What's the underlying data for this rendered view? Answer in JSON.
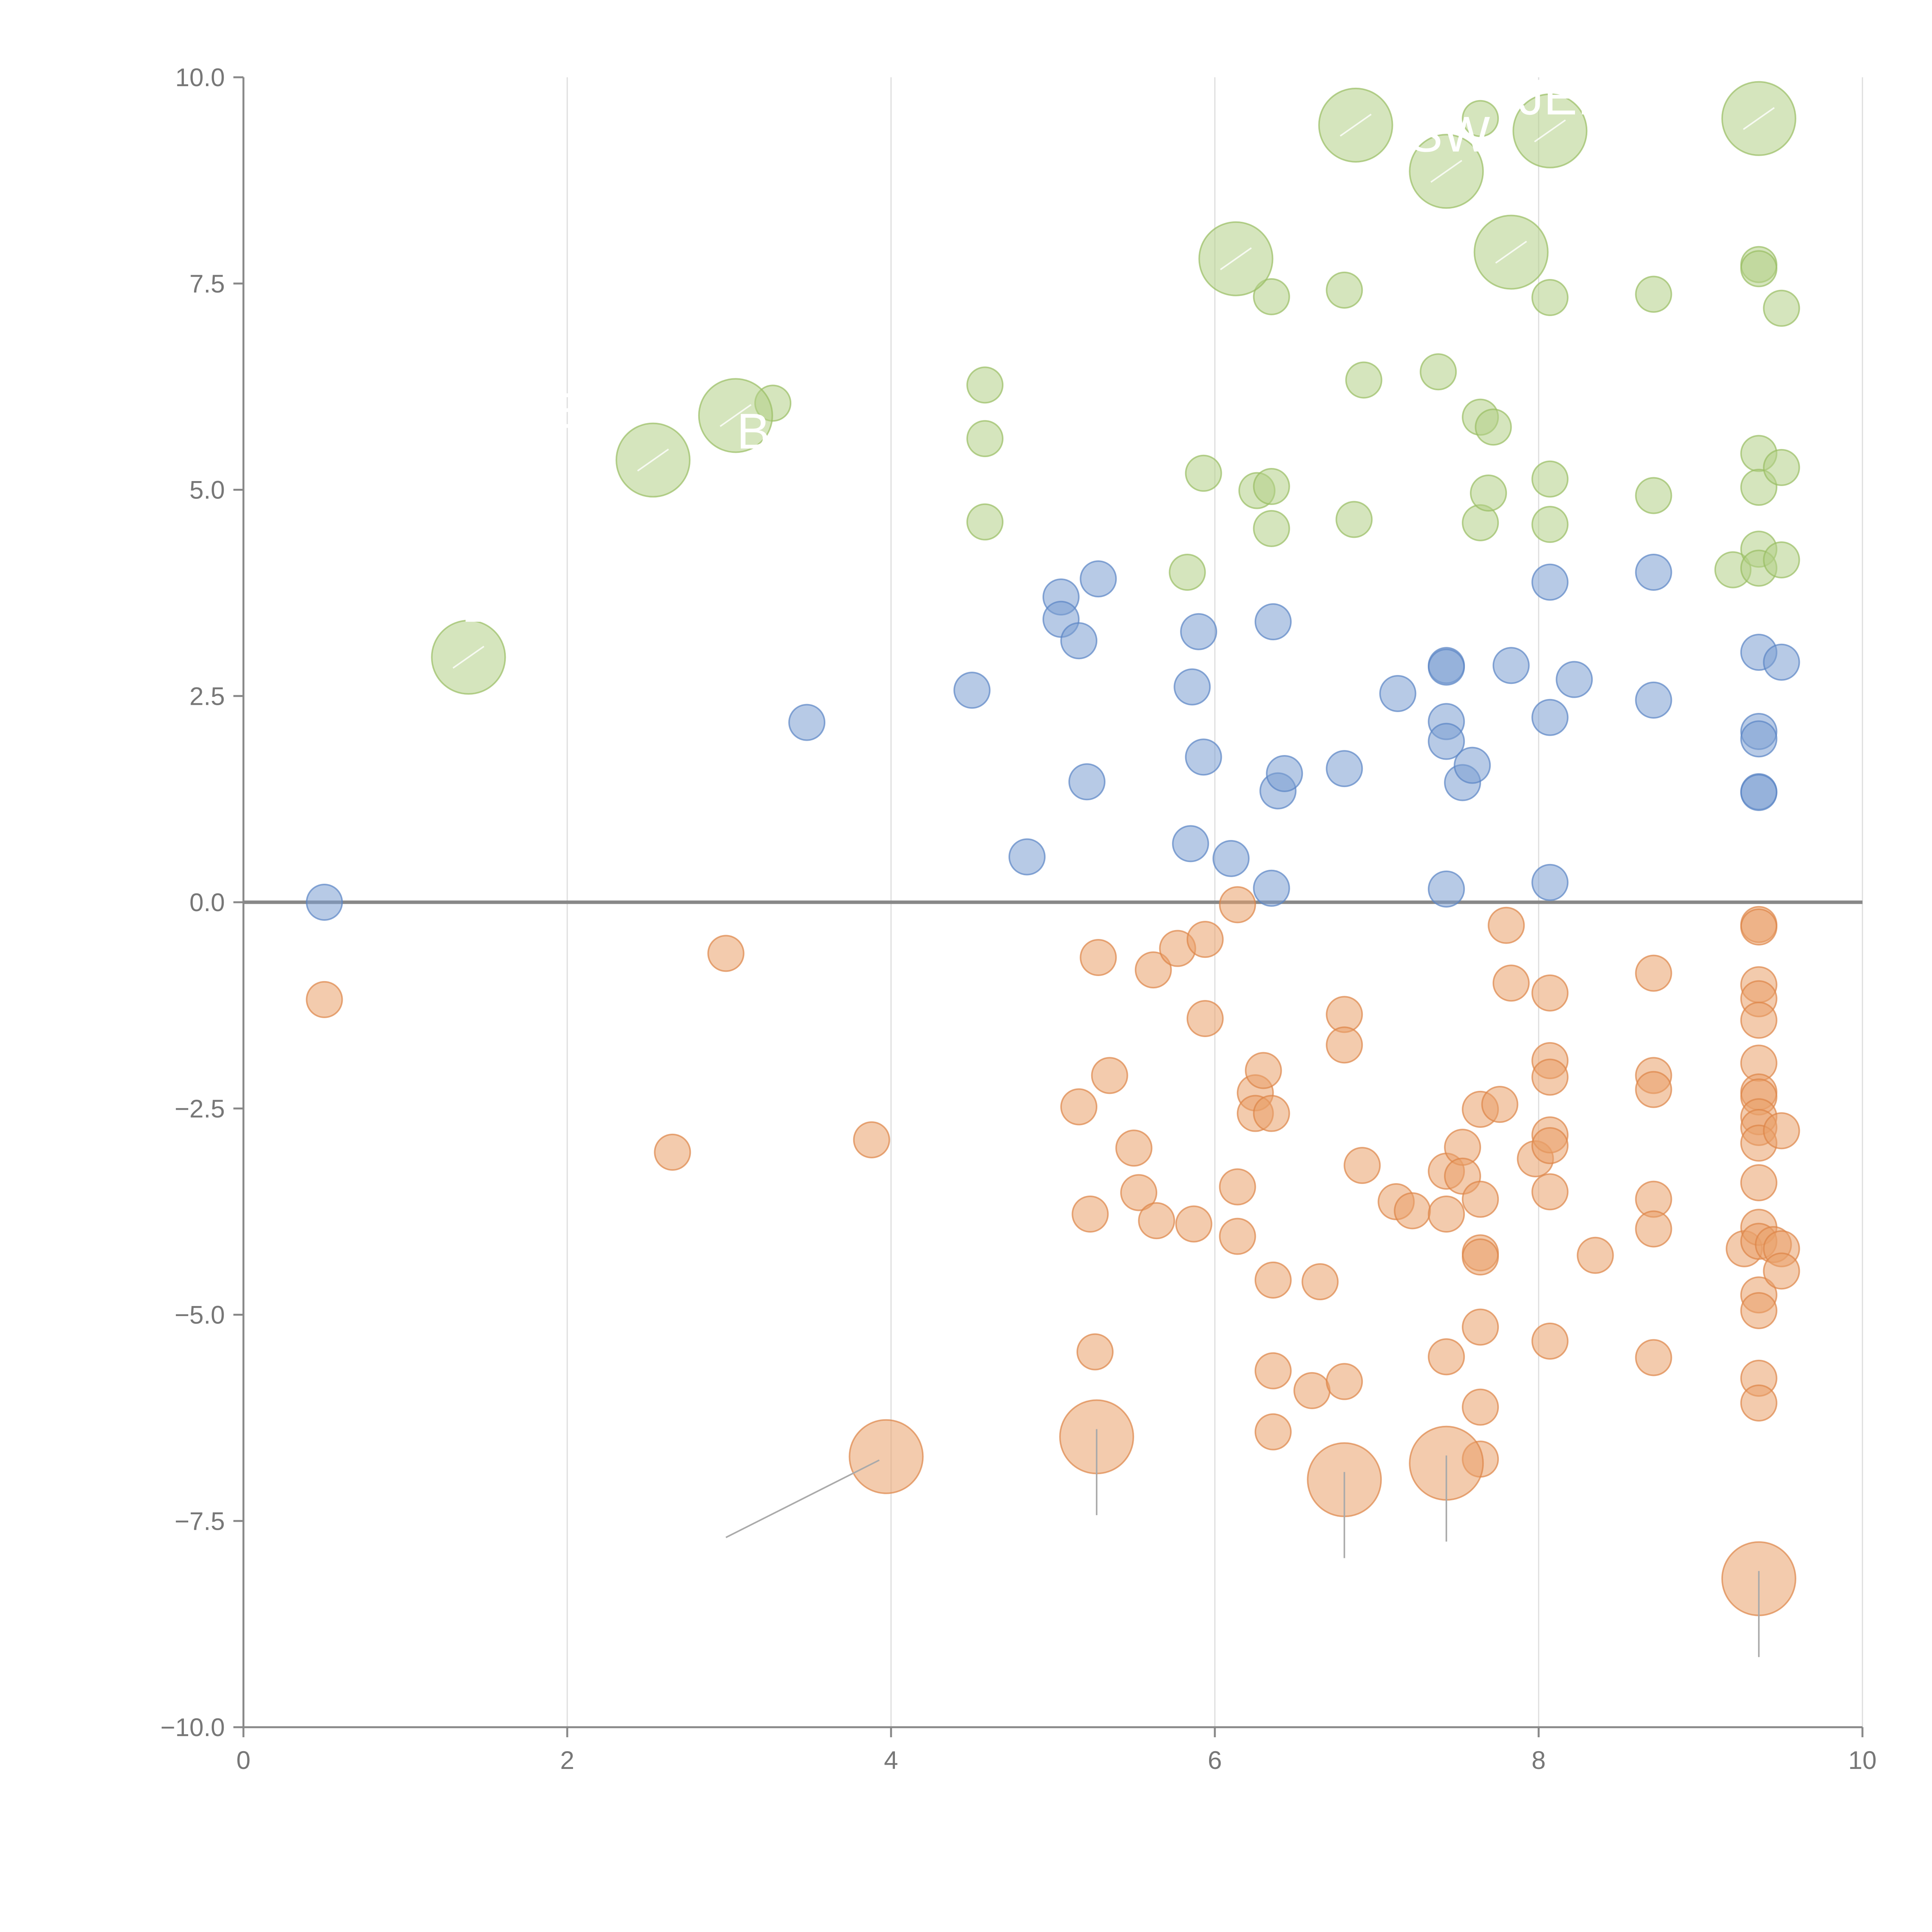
{
  "chart_data": {
    "type": "scatter",
    "title": "",
    "xlabel": "",
    "ylabel": "",
    "xlim": [
      0,
      10
    ],
    "ylim": [
      -10,
      10
    ],
    "grid": "vertical",
    "x_ticks": [
      0,
      2,
      4,
      6,
      8,
      10
    ],
    "x_tick_labels": [
      "0",
      "2",
      "4",
      "6",
      "8",
      "10"
    ],
    "y_ticks": [
      10,
      7.5,
      5,
      2.5,
      0,
      -2.5,
      -5,
      -7.5,
      -10
    ],
    "y_tick_labels": [
      "10.0",
      "7.5",
      "5.0",
      "2.5",
      "0.0",
      "−2.5",
      "−5.0",
      "−7.5",
      "−10.0"
    ],
    "reference_line_y": 0,
    "colors": {
      "blue": "#7b9fd1",
      "orange": "#e9a06a",
      "green": "#b3cf87",
      "blue_stroke": "#5a84c4",
      "orange_stroke": "#dd8447",
      "green_stroke": "#98bd63"
    },
    "series": [
      {
        "name": "blue",
        "color": "blue",
        "points": [
          [
            0.5,
            0.0
          ],
          [
            3.48,
            2.18
          ],
          [
            4.5,
            2.57
          ],
          [
            4.84,
            0.55
          ],
          [
            5.05,
            3.7
          ],
          [
            5.05,
            3.43
          ],
          [
            5.16,
            3.17
          ],
          [
            5.21,
            1.46
          ],
          [
            5.28,
            3.92
          ],
          [
            5.85,
            0.71
          ],
          [
            5.86,
            2.61
          ],
          [
            5.9,
            3.28
          ],
          [
            5.93,
            1.76
          ],
          [
            6.1,
            0.53
          ],
          [
            6.36,
            3.4
          ],
          [
            6.35,
            0.17
          ],
          [
            6.39,
            1.35
          ],
          [
            6.43,
            1.56
          ],
          [
            6.8,
            1.62
          ],
          [
            7.13,
            2.53
          ],
          [
            7.43,
            2.87
          ],
          [
            7.43,
            2.85
          ],
          [
            7.43,
            2.19
          ],
          [
            7.43,
            1.95
          ],
          [
            7.43,
            0.16
          ],
          [
            7.53,
            1.45
          ],
          [
            7.59,
            1.66
          ],
          [
            7.83,
            2.87
          ],
          [
            8.07,
            3.88
          ],
          [
            8.07,
            2.24
          ],
          [
            8.07,
            0.24
          ],
          [
            8.22,
            2.7
          ],
          [
            8.71,
            4.0
          ],
          [
            8.71,
            2.45
          ],
          [
            9.36,
            3.03
          ],
          [
            9.36,
            2.07
          ],
          [
            9.36,
            1.98
          ],
          [
            9.36,
            1.34
          ],
          [
            9.36,
            1.33
          ],
          [
            9.5,
            2.91
          ]
        ]
      },
      {
        "name": "orange",
        "color": "orange",
        "points": [
          [
            0.5,
            -1.18
          ],
          [
            2.65,
            -3.03
          ],
          [
            2.98,
            -0.62
          ],
          [
            3.88,
            -2.88
          ],
          [
            5.16,
            -2.48
          ],
          [
            5.23,
            -3.78
          ],
          [
            5.26,
            -5.45
          ],
          [
            5.28,
            -0.67
          ],
          [
            5.35,
            -2.1
          ],
          [
            5.5,
            -2.98
          ],
          [
            5.53,
            -3.52
          ],
          [
            5.62,
            -0.82
          ],
          [
            5.64,
            -3.86
          ],
          [
            5.77,
            -0.56
          ],
          [
            5.87,
            -3.9
          ],
          [
            5.94,
            -0.45
          ],
          [
            5.94,
            -1.41
          ],
          [
            6.14,
            -0.03
          ],
          [
            6.14,
            -3.45
          ],
          [
            6.14,
            -4.05
          ],
          [
            6.25,
            -2.31
          ],
          [
            6.25,
            -2.56
          ],
          [
            6.3,
            -2.04
          ],
          [
            6.35,
            -2.56
          ],
          [
            6.36,
            -4.58
          ],
          [
            6.36,
            -5.68
          ],
          [
            6.36,
            -6.42
          ],
          [
            6.6,
            -5.92
          ],
          [
            6.65,
            -4.6
          ],
          [
            6.8,
            -1.36
          ],
          [
            6.8,
            -1.73
          ],
          [
            6.8,
            -5.81
          ],
          [
            6.91,
            -3.19
          ],
          [
            7.12,
            -3.63
          ],
          [
            7.22,
            -3.74
          ],
          [
            7.43,
            -3.26
          ],
          [
            7.43,
            -3.78
          ],
          [
            7.43,
            -5.51
          ],
          [
            7.53,
            -2.97
          ],
          [
            7.53,
            -3.32
          ],
          [
            7.64,
            -2.51
          ],
          [
            7.64,
            -3.6
          ],
          [
            7.64,
            -4.25
          ],
          [
            7.64,
            -4.3
          ],
          [
            7.64,
            -5.15
          ],
          [
            7.64,
            -6.12
          ],
          [
            7.64,
            -6.75
          ],
          [
            7.76,
            -2.45
          ],
          [
            7.8,
            -0.28
          ],
          [
            7.83,
            -0.98
          ],
          [
            7.98,
            -3.11
          ],
          [
            8.07,
            -1.1
          ],
          [
            8.07,
            -1.92
          ],
          [
            8.07,
            -2.12
          ],
          [
            8.07,
            -2.82
          ],
          [
            8.07,
            -2.95
          ],
          [
            8.07,
            -3.51
          ],
          [
            8.07,
            -5.32
          ],
          [
            8.35,
            -4.28
          ],
          [
            8.71,
            -0.86
          ],
          [
            8.71,
            -2.1
          ],
          [
            8.71,
            -2.27
          ],
          [
            8.71,
            -3.6
          ],
          [
            8.71,
            -3.96
          ],
          [
            8.71,
            -5.52
          ],
          [
            9.27,
            -4.2
          ],
          [
            9.36,
            -0.27
          ],
          [
            9.36,
            -0.3
          ],
          [
            9.36,
            -1.0
          ],
          [
            9.36,
            -1.17
          ],
          [
            9.36,
            -1.43
          ],
          [
            9.36,
            -1.95
          ],
          [
            9.36,
            -2.3
          ],
          [
            9.36,
            -2.36
          ],
          [
            9.36,
            -2.6
          ],
          [
            9.36,
            -2.73
          ],
          [
            9.36,
            -2.92
          ],
          [
            9.36,
            -3.4
          ],
          [
            9.36,
            -3.94
          ],
          [
            9.36,
            -4.11
          ],
          [
            9.36,
            -4.76
          ],
          [
            9.36,
            -4.95
          ],
          [
            9.36,
            -5.77
          ],
          [
            9.36,
            -6.07
          ],
          [
            9.45,
            -4.15
          ],
          [
            9.5,
            -2.77
          ],
          [
            9.5,
            -4.2
          ],
          [
            9.5,
            -4.47
          ]
        ]
      },
      {
        "name": "green",
        "color": "green",
        "points": [
          [
            3.27,
            6.05
          ],
          [
            4.58,
            6.27
          ],
          [
            4.58,
            5.62
          ],
          [
            4.58,
            4.61
          ],
          [
            5.83,
            4.0
          ],
          [
            5.93,
            5.2
          ],
          [
            6.26,
            4.99
          ],
          [
            6.35,
            7.34
          ],
          [
            6.35,
            5.04
          ],
          [
            6.35,
            4.53
          ],
          [
            6.8,
            7.42
          ],
          [
            6.86,
            4.64
          ],
          [
            6.92,
            6.33
          ],
          [
            7.38,
            6.43
          ],
          [
            7.64,
            5.88
          ],
          [
            7.64,
            4.6
          ],
          [
            7.69,
            4.96
          ],
          [
            7.72,
            5.76
          ],
          [
            7.64,
            9.5
          ],
          [
            8.07,
            7.33
          ],
          [
            8.07,
            5.13
          ],
          [
            8.07,
            4.58
          ],
          [
            8.71,
            7.37
          ],
          [
            8.71,
            4.93
          ],
          [
            9.2,
            4.03
          ],
          [
            9.36,
            7.73
          ],
          [
            9.36,
            7.68
          ],
          [
            9.36,
            5.44
          ],
          [
            9.36,
            5.03
          ],
          [
            9.36,
            4.28
          ],
          [
            9.36,
            4.05
          ],
          [
            9.5,
            7.2
          ],
          [
            9.5,
            5.27
          ],
          [
            9.5,
            4.15
          ]
        ]
      }
    ],
    "highlighted": [
      {
        "series": "orange",
        "x": 3.97,
        "y": -6.72,
        "leader_to": [
          2.98,
          -7.7
        ]
      },
      {
        "series": "orange",
        "x": 5.27,
        "y": -6.48,
        "leader_to": [
          5.27,
          -7.43
        ]
      },
      {
        "series": "orange",
        "x": 6.8,
        "y": -7.0,
        "leader_to": [
          6.8,
          -7.95
        ]
      },
      {
        "series": "orange",
        "x": 7.43,
        "y": -6.8,
        "leader_to": [
          7.43,
          -7.75
        ]
      },
      {
        "series": "orange",
        "x": 9.36,
        "y": -8.2,
        "leader_to": [
          9.36,
          -9.15
        ]
      },
      {
        "series": "green",
        "x": 1.39,
        "y": 2.97,
        "leader_to": [
          1.43,
          3.0
        ]
      },
      {
        "series": "green",
        "x": 2.53,
        "y": 5.36,
        "leader_to": [
          2.53,
          5.45
        ]
      },
      {
        "series": "green",
        "x": 3.04,
        "y": 5.9,
        "leader_to": [
          3.08,
          5.8
        ]
      },
      {
        "series": "green",
        "x": 6.13,
        "y": 7.8,
        "leader_to": [
          6.13,
          7.8
        ]
      },
      {
        "series": "green",
        "x": 6.87,
        "y": 9.42,
        "leader_to": [
          6.87,
          9.42
        ]
      },
      {
        "series": "green",
        "x": 7.43,
        "y": 8.86,
        "leader_to": [
          7.43,
          8.86
        ]
      },
      {
        "series": "green",
        "x": 7.83,
        "y": 7.88,
        "leader_to": [
          7.83,
          7.88
        ]
      },
      {
        "series": "green",
        "x": 8.07,
        "y": 9.35,
        "leader_to": [
          8.07,
          9.35
        ]
      },
      {
        "series": "green",
        "x": 9.36,
        "y": 9.5,
        "leader_to": [
          9.36,
          9.5
        ]
      }
    ],
    "annotations": [
      {
        "text": "B",
        "x": 1.45,
        "y": 3.4
      },
      {
        "text": "B",
        "x": 3.15,
        "y": 5.5
      },
      {
        "text": "E",
        "x": 2.0,
        "y": 5.75
      },
      {
        "text": "SW",
        "x": 7.45,
        "y": 9.1
      },
      {
        "text": "JEI",
        "x": 8.1,
        "y": 9.55
      }
    ]
  }
}
